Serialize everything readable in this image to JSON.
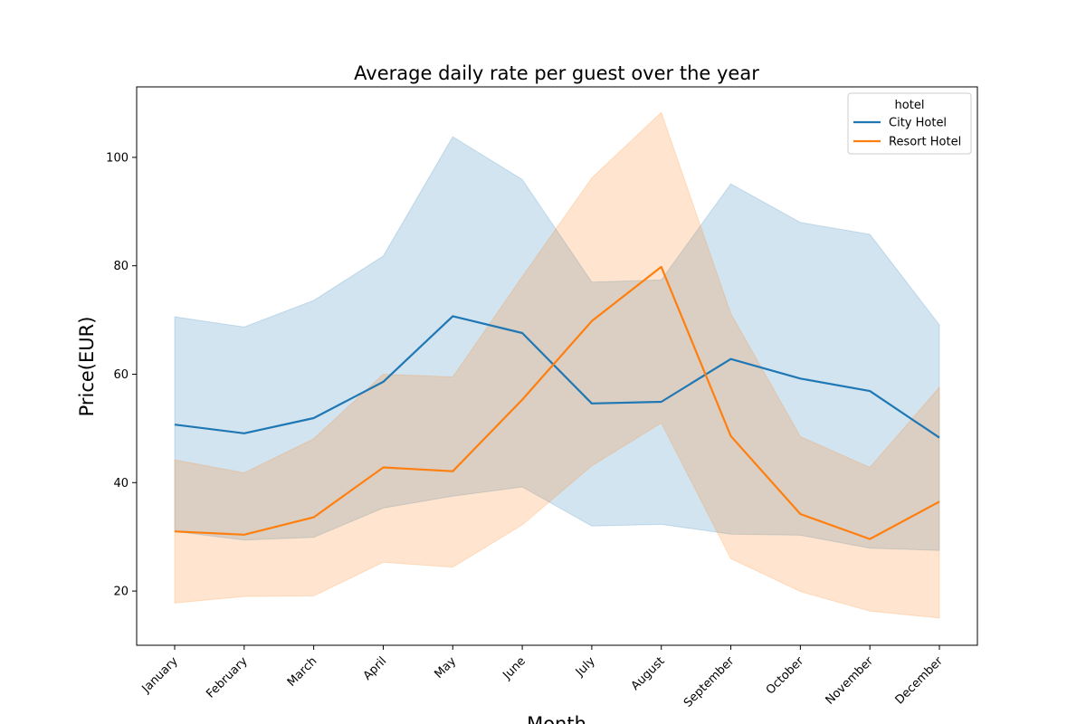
{
  "chart_data": {
    "type": "line",
    "title": "Average daily rate per guest over the year",
    "xlabel": "Month",
    "ylabel": "Price(EUR)",
    "categories": [
      "January",
      "February",
      "March",
      "April",
      "May",
      "June",
      "July",
      "August",
      "September",
      "October",
      "November",
      "December"
    ],
    "ylim": [
      10,
      113
    ],
    "yticks": [
      20,
      40,
      60,
      80,
      100
    ],
    "grid": false,
    "legend": {
      "title": "hotel",
      "placement": "top-right"
    },
    "series": [
      {
        "name": "City Hotel",
        "color": "#1f77b4",
        "values": [
          50.7,
          49.1,
          51.9,
          58.6,
          70.7,
          67.6,
          54.6,
          54.9,
          62.8,
          59.2,
          56.9,
          48.3
        ],
        "ci_upper": [
          70.6,
          68.7,
          73.6,
          81.8,
          103.8,
          95.9,
          77.0,
          77.4,
          95.1,
          88.0,
          85.8,
          69.1
        ],
        "ci_lower": [
          31.0,
          29.4,
          29.9,
          35.3,
          37.5,
          39.2,
          32.0,
          32.3,
          30.5,
          30.3,
          27.9,
          27.5
        ]
      },
      {
        "name": "Resort Hotel",
        "color": "#ff7f0e",
        "values": [
          31.0,
          30.4,
          33.6,
          42.8,
          42.1,
          55.3,
          69.8,
          79.8,
          48.6,
          34.2,
          29.6,
          36.5
        ],
        "ci_upper": [
          44.2,
          41.8,
          48.1,
          60.0,
          59.5,
          78.0,
          96.2,
          108.3,
          71.2,
          48.5,
          42.8,
          57.6
        ],
        "ci_lower": [
          17.8,
          19.0,
          19.1,
          25.3,
          24.4,
          32.2,
          43.1,
          51.0,
          26.0,
          19.9,
          16.3,
          15.0
        ]
      }
    ]
  }
}
